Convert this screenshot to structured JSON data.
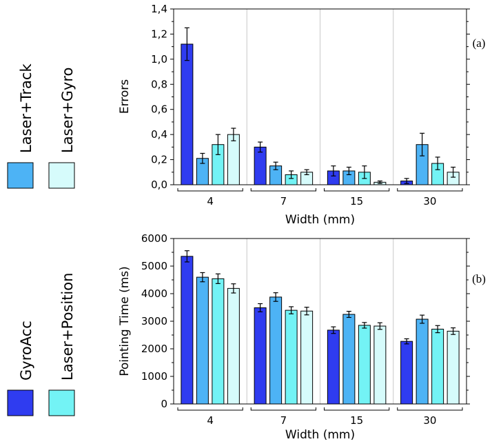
{
  "legend": {
    "items": [
      {
        "label": "Laser+Track",
        "color": "#4db3f5"
      },
      {
        "label": "Laser+Gyro",
        "color": "#d6fbfb"
      },
      {
        "label": "GyroAcc",
        "color": "#2f3cf0"
      },
      {
        "label": "Laser+Position",
        "color": "#73f3f5"
      }
    ]
  },
  "chart_data": [
    {
      "type": "bar",
      "panel_label": "(a)",
      "xlabel": "Width (mm)",
      "ylabel": "Errors",
      "ylim": [
        0,
        1.4
      ],
      "yticks": [
        "0,0",
        "0,2",
        "0,4",
        "0,6",
        "0,8",
        "1,0",
        "1,2",
        "1,4"
      ],
      "categories": [
        "4",
        "7",
        "15",
        "30"
      ],
      "grid": "vertical separators between categories",
      "series": [
        {
          "name": "GyroAcc",
          "values": [
            1.12,
            0.3,
            0.11,
            0.03
          ],
          "errors": [
            0.13,
            0.04,
            0.04,
            0.02
          ]
        },
        {
          "name": "Laser+Track",
          "values": [
            0.21,
            0.15,
            0.11,
            0.32
          ],
          "errors": [
            0.04,
            0.03,
            0.03,
            0.09
          ]
        },
        {
          "name": "Laser+Position",
          "values": [
            0.32,
            0.08,
            0.1,
            0.17
          ],
          "errors": [
            0.08,
            0.03,
            0.05,
            0.05
          ]
        },
        {
          "name": "Laser+Gyro",
          "values": [
            0.4,
            0.1,
            0.02,
            0.1
          ],
          "errors": [
            0.05,
            0.02,
            0.01,
            0.04
          ]
        }
      ]
    },
    {
      "type": "bar",
      "panel_label": "(b)",
      "xlabel": "Width (mm)",
      "ylabel": "Pointing Time (ms)",
      "ylim": [
        0,
        6500
      ],
      "yticks": [
        "0",
        "1000",
        "2000",
        "3000",
        "4000",
        "5000",
        "6000"
      ],
      "categories": [
        "4",
        "7",
        "15",
        "30"
      ],
      "grid": "vertical separators between categories",
      "series": [
        {
          "name": "GyroAcc",
          "values": [
            5800,
            3780,
            2900,
            2460
          ],
          "errors": [
            220,
            160,
            130,
            100
          ]
        },
        {
          "name": "Laser+Track",
          "values": [
            4980,
            4200,
            3520,
            3330
          ],
          "errors": [
            180,
            170,
            120,
            160
          ]
        },
        {
          "name": "Laser+Position",
          "values": [
            4920,
            3680,
            3090,
            2940
          ],
          "errors": [
            190,
            140,
            110,
            140
          ]
        },
        {
          "name": "Laser+Gyro",
          "values": [
            4540,
            3650,
            3060,
            2860
          ],
          "errors": [
            180,
            150,
            130,
            130
          ]
        }
      ]
    }
  ]
}
